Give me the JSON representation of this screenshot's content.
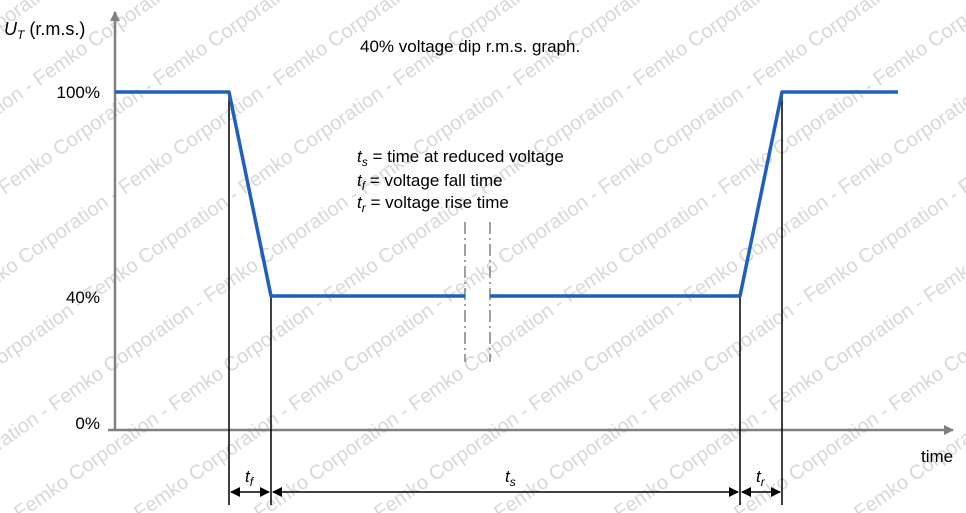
{
  "title": "40% voltage dip r.m.s. graph.",
  "y_axis": {
    "symbol_main": "U",
    "symbol_sub": "T",
    "unit": " (r.m.s.)",
    "ticks": [
      "100%",
      "40%",
      "0%"
    ]
  },
  "x_axis": {
    "label": "time"
  },
  "legend": [
    {
      "sym": "t",
      "sub": "s",
      "text": " = time at reduced voltage"
    },
    {
      "sym": "t",
      "sub": "f",
      "text": " = voltage fall time"
    },
    {
      "sym": "t",
      "sub": "r",
      "text": " = voltage rise time"
    }
  ],
  "intervals": [
    {
      "sym": "t",
      "sub": "f"
    },
    {
      "sym": "t",
      "sub": "s"
    },
    {
      "sym": "t",
      "sub": "r"
    }
  ],
  "watermark": "Femko Corporation - Femko Corporation - Femko Corporation - Femko Corporation - Femko Corporation - Femko Corporation",
  "colors": {
    "curve": "#1f5fbf",
    "axis": "#808080",
    "guides": "#000000",
    "break_marks": "#808080"
  }
}
